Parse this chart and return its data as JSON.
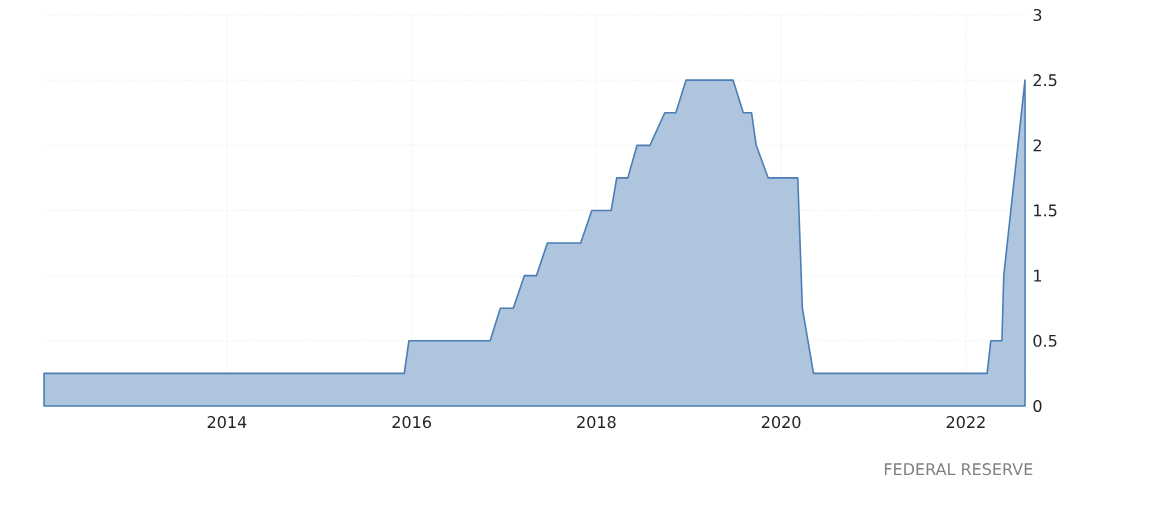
{
  "chart_data": {
    "type": "area",
    "color": "#4a7eb4",
    "x": [
      2012.02,
      2015.92,
      2015.97,
      2016.85,
      2016.96,
      2017.1,
      2017.22,
      2017.35,
      2017.47,
      2017.83,
      2017.95,
      2018.16,
      2018.22,
      2018.34,
      2018.44,
      2018.58,
      2018.74,
      2018.86,
      2018.97,
      2019.48,
      2019.59,
      2019.68,
      2019.73,
      2019.86,
      2020.18,
      2020.23,
      2020.35,
      2022.23,
      2022.27,
      2022.39,
      2022.41,
      2022.64
    ],
    "values": [
      0.25,
      0.25,
      0.5,
      0.5,
      0.75,
      0.75,
      1,
      1,
      1.25,
      1.25,
      1.5,
      1.5,
      1.75,
      1.75,
      2,
      2,
      2.25,
      2.25,
      2.5,
      2.5,
      2.25,
      2.25,
      2,
      1.75,
      1.75,
      0.75,
      0.25,
      0.25,
      0.5,
      0.5,
      1,
      2.5
    ],
    "xlim": [
      2012.02,
      2022.64
    ],
    "xticks": [
      2014,
      2016,
      2018,
      2020,
      2022
    ],
    "ylim": [
      0,
      3
    ],
    "yticks": [
      0,
      0.5,
      1,
      1.5,
      2,
      2.5,
      3
    ],
    "grid": true,
    "annotations": [
      "FEDERAL RESERVE"
    ]
  }
}
